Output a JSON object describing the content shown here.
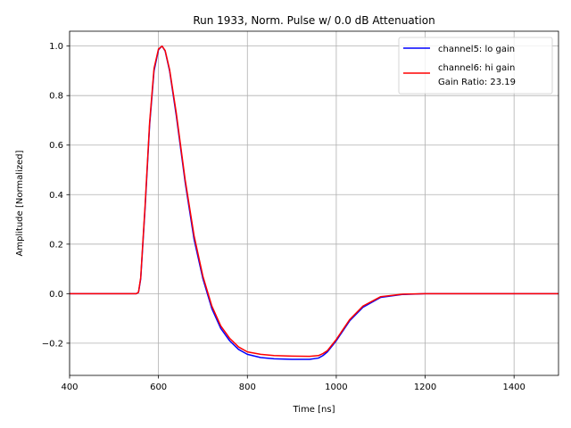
{
  "chart_data": {
    "type": "line",
    "title": "Run 1933, Norm. Pulse w/ 0.0 dB Attenuation",
    "xlabel": "Time [ns]",
    "ylabel": "Amplitude [Normalized]",
    "xlim": [
      400,
      1500
    ],
    "ylim": [
      -0.33,
      1.06
    ],
    "grid": true,
    "legend_position": "top-right",
    "x_ticks": [
      400,
      600,
      800,
      1000,
      1200,
      1400
    ],
    "x_tick_labels": [
      "400",
      "600",
      "800",
      "1000",
      "1200",
      "1400"
    ],
    "y_ticks": [
      -0.2,
      0.0,
      0.2,
      0.4,
      0.6,
      0.8,
      1.0
    ],
    "y_tick_labels": [
      "−0.2",
      "0.0",
      "0.2",
      "0.4",
      "0.6",
      "0.8",
      "1.0"
    ],
    "legend_extra": "Gain Ratio: 23.19",
    "series": [
      {
        "name": "channel5: lo gain",
        "color": "#0000ff",
        "x": [
          400,
          500,
          550,
          555,
          560,
          570,
          580,
          590,
          600,
          608,
          615,
          625,
          640,
          660,
          680,
          700,
          720,
          740,
          760,
          780,
          800,
          830,
          860,
          900,
          940,
          960,
          970,
          980,
          1000,
          1030,
          1060,
          1100,
          1150,
          1200,
          1300,
          1400,
          1500
        ],
        "y": [
          0.0,
          0.0,
          0.0,
          0.005,
          0.06,
          0.35,
          0.68,
          0.9,
          0.985,
          1.0,
          0.98,
          0.9,
          0.72,
          0.45,
          0.22,
          0.06,
          -0.06,
          -0.14,
          -0.19,
          -0.225,
          -0.245,
          -0.258,
          -0.263,
          -0.265,
          -0.265,
          -0.26,
          -0.25,
          -0.235,
          -0.19,
          -0.11,
          -0.055,
          -0.015,
          -0.003,
          0.0,
          0.0,
          0.0,
          0.0
        ]
      },
      {
        "name": "channel6: hi gain",
        "color": "#ff0000",
        "x": [
          400,
          500,
          550,
          555,
          560,
          570,
          580,
          590,
          600,
          608,
          615,
          625,
          640,
          660,
          680,
          700,
          720,
          740,
          760,
          780,
          800,
          830,
          860,
          900,
          940,
          960,
          970,
          980,
          1000,
          1030,
          1060,
          1100,
          1150,
          1200,
          1300,
          1400,
          1500
        ],
        "y": [
          0.0,
          0.0,
          0.0,
          0.006,
          0.065,
          0.36,
          0.69,
          0.91,
          0.988,
          1.0,
          0.982,
          0.905,
          0.73,
          0.46,
          0.235,
          0.07,
          -0.05,
          -0.13,
          -0.18,
          -0.215,
          -0.235,
          -0.245,
          -0.25,
          -0.252,
          -0.253,
          -0.25,
          -0.242,
          -0.23,
          -0.185,
          -0.105,
          -0.05,
          -0.012,
          -0.002,
          0.0,
          0.0,
          0.0,
          0.0
        ]
      }
    ]
  }
}
